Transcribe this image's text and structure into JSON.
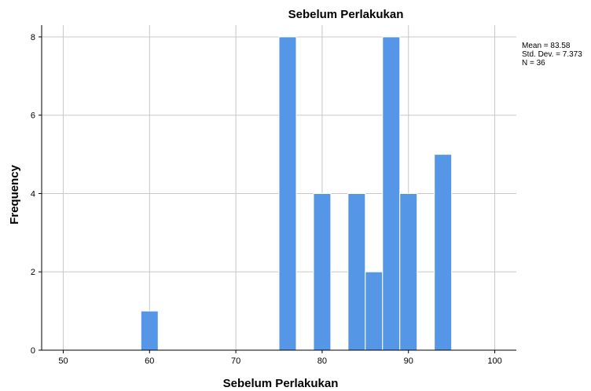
{
  "chart_data": {
    "type": "bar",
    "title": "Sebelum Perlakukan",
    "xlabel": "Sebelum Perlakukan",
    "ylabel": "Frequency",
    "bin_width": 2,
    "bins": [
      {
        "x": 60,
        "count": 1
      },
      {
        "x": 76,
        "count": 8
      },
      {
        "x": 80,
        "count": 4
      },
      {
        "x": 84,
        "count": 4
      },
      {
        "x": 86,
        "count": 2
      },
      {
        "x": 88,
        "count": 8
      },
      {
        "x": 90,
        "count": 4
      },
      {
        "x": 94,
        "count": 5
      }
    ],
    "xlim": [
      47.5,
      102.5
    ],
    "ylim": [
      0,
      8.3
    ],
    "xticks": [
      50,
      60,
      70,
      80,
      90,
      100
    ],
    "yticks": [
      0,
      2,
      4,
      6,
      8
    ],
    "grid": true,
    "bar_color": "#5596e6",
    "stats": {
      "mean": "Mean = 83.58",
      "std": "Std. Dev. = 7.373",
      "n": "N = 36"
    }
  }
}
